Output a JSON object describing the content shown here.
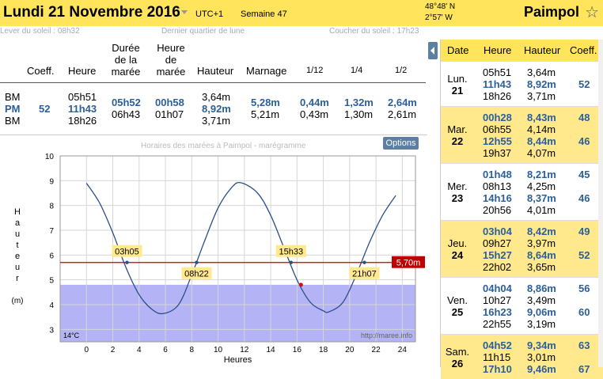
{
  "header": {
    "title": "Lundi 21 Novembre 2016",
    "utc": "UTC+1",
    "week": "Semaine 47",
    "lat": "48°48' N",
    "lon": "2°57' W",
    "city": "Paimpol"
  },
  "subinfo": {
    "sunrise": "Lever du soleil : 08h32",
    "moon": "Dernier quartier de lune",
    "sunset": "Coucher du soleil : 17h23"
  },
  "table": {
    "headers": {
      "coeff": "Coeff.",
      "heure": "Heure",
      "duree": [
        "Durée",
        "de la",
        "marée"
      ],
      "heure_maree": [
        "Heure",
        "de",
        "marée"
      ],
      "hauteur": "Hauteur",
      "marnage": "Marnage",
      "twelfth1": "1/12",
      "quarter": "1/4",
      "half": "1/2"
    },
    "types": [
      "BM",
      "PM",
      "BM"
    ],
    "coeff": "52",
    "heures": [
      "05h51",
      "11h43",
      "18h26"
    ],
    "durees": [
      "05h52",
      "06h43"
    ],
    "heures_maree": [
      "00h58",
      "01h07"
    ],
    "hauteurs": [
      "3,64m",
      "8,92m",
      "3,71m"
    ],
    "marnages": [
      "5,28m",
      "5,21m"
    ],
    "twelfths": [
      "0,44m",
      "0,43m"
    ],
    "quarters": [
      "1,32m",
      "1,30m"
    ],
    "halves": [
      "2,64m",
      "2,61m"
    ]
  },
  "chart_title": "Horaires des marées à Paimpol - marégramme",
  "options_label": "Options",
  "chart_data": {
    "type": "line",
    "xlabel": "Heures",
    "ylabel": "Hauteur (m)",
    "xlim": [
      -2,
      25
    ],
    "ylim": [
      2.5,
      10
    ],
    "xticks": [
      0,
      2,
      4,
      6,
      8,
      10,
      12,
      14,
      16,
      18,
      20,
      22,
      24
    ],
    "yticks": [
      3,
      4,
      5,
      6,
      7,
      8,
      9,
      10
    ],
    "series": [
      {
        "x": [
          0,
          1,
          2,
          3,
          4,
          5,
          5.85,
          7,
          8,
          9,
          10,
          11,
          11.72,
          13,
          14,
          15,
          16,
          17,
          18,
          18.43,
          19.5,
          20.5,
          21.5,
          22.5,
          23.5
        ],
        "values": [
          8.9,
          8.1,
          6.9,
          5.5,
          4.4,
          3.8,
          3.64,
          4.0,
          5.2,
          6.6,
          7.9,
          8.7,
          8.92,
          8.5,
          7.6,
          6.3,
          5.0,
          4.1,
          3.75,
          3.71,
          4.1,
          5.2,
          6.5,
          7.6,
          8.4
        ]
      }
    ],
    "threshold": {
      "value": 5.7,
      "label": "5,70m"
    },
    "crossings": [
      {
        "x": 3.08,
        "label": "03h05"
      },
      {
        "x": 8.37,
        "label": "08h22"
      },
      {
        "x": 15.55,
        "label": "15h33"
      },
      {
        "x": 21.12,
        "label": "21h07"
      }
    ],
    "current_point": {
      "x": 16.3,
      "y": 4.8
    },
    "shaded_below": 4.8,
    "temperature": "14°C",
    "watermark": "http://maree.info"
  },
  "right_panel": {
    "headers": [
      "Date",
      "Heure",
      "Hauteur",
      "Coeff."
    ],
    "days": [
      {
        "day": "Lun.",
        "num": "21",
        "yellow": false,
        "tides": [
          [
            "05h51",
            "3,64m",
            "",
            false
          ],
          [
            "11h43",
            "8,92m",
            "52",
            true
          ],
          [
            "18h26",
            "3,71m",
            "",
            false
          ]
        ]
      },
      {
        "day": "Mar.",
        "num": "22",
        "yellow": true,
        "tides": [
          [
            "00h28",
            "8,43m",
            "48",
            true
          ],
          [
            "06h55",
            "4,14m",
            "",
            false
          ],
          [
            "12h55",
            "8,44m",
            "46",
            true
          ],
          [
            "19h37",
            "4,07m",
            "",
            false
          ]
        ]
      },
      {
        "day": "Mer.",
        "num": "23",
        "yellow": false,
        "tides": [
          [
            "01h48",
            "8,21m",
            "45",
            true
          ],
          [
            "08h13",
            "4,25m",
            "",
            false
          ],
          [
            "14h16",
            "8,37m",
            "46",
            true
          ],
          [
            "20h56",
            "4,01m",
            "",
            false
          ]
        ]
      },
      {
        "day": "Jeu.",
        "num": "24",
        "yellow": true,
        "tides": [
          [
            "03h04",
            "8,42m",
            "49",
            true
          ],
          [
            "09h27",
            "3,97m",
            "",
            false
          ],
          [
            "15h27",
            "8,64m",
            "52",
            true
          ],
          [
            "22h02",
            "3,65m",
            "",
            false
          ]
        ]
      },
      {
        "day": "Ven.",
        "num": "25",
        "yellow": false,
        "tides": [
          [
            "04h04",
            "8,86m",
            "56",
            true
          ],
          [
            "10h27",
            "3,49m",
            "",
            false
          ],
          [
            "16h23",
            "9,06m",
            "60",
            true
          ],
          [
            "22h55",
            "3,19m",
            "",
            false
          ]
        ]
      },
      {
        "day": "Sam.",
        "num": "26",
        "yellow": true,
        "tides": [
          [
            "04h52",
            "9,34m",
            "63",
            true
          ],
          [
            "11h15",
            "3,01m",
            "",
            false
          ],
          [
            "17h10",
            "9,46m",
            "67",
            true
          ]
        ]
      }
    ]
  },
  "colors": {
    "accent": "#ffe45c",
    "blue": "#2b5f9a",
    "threshold": "#c00000",
    "curve": "#2b4f8a",
    "shade": "#b3b3f5"
  }
}
